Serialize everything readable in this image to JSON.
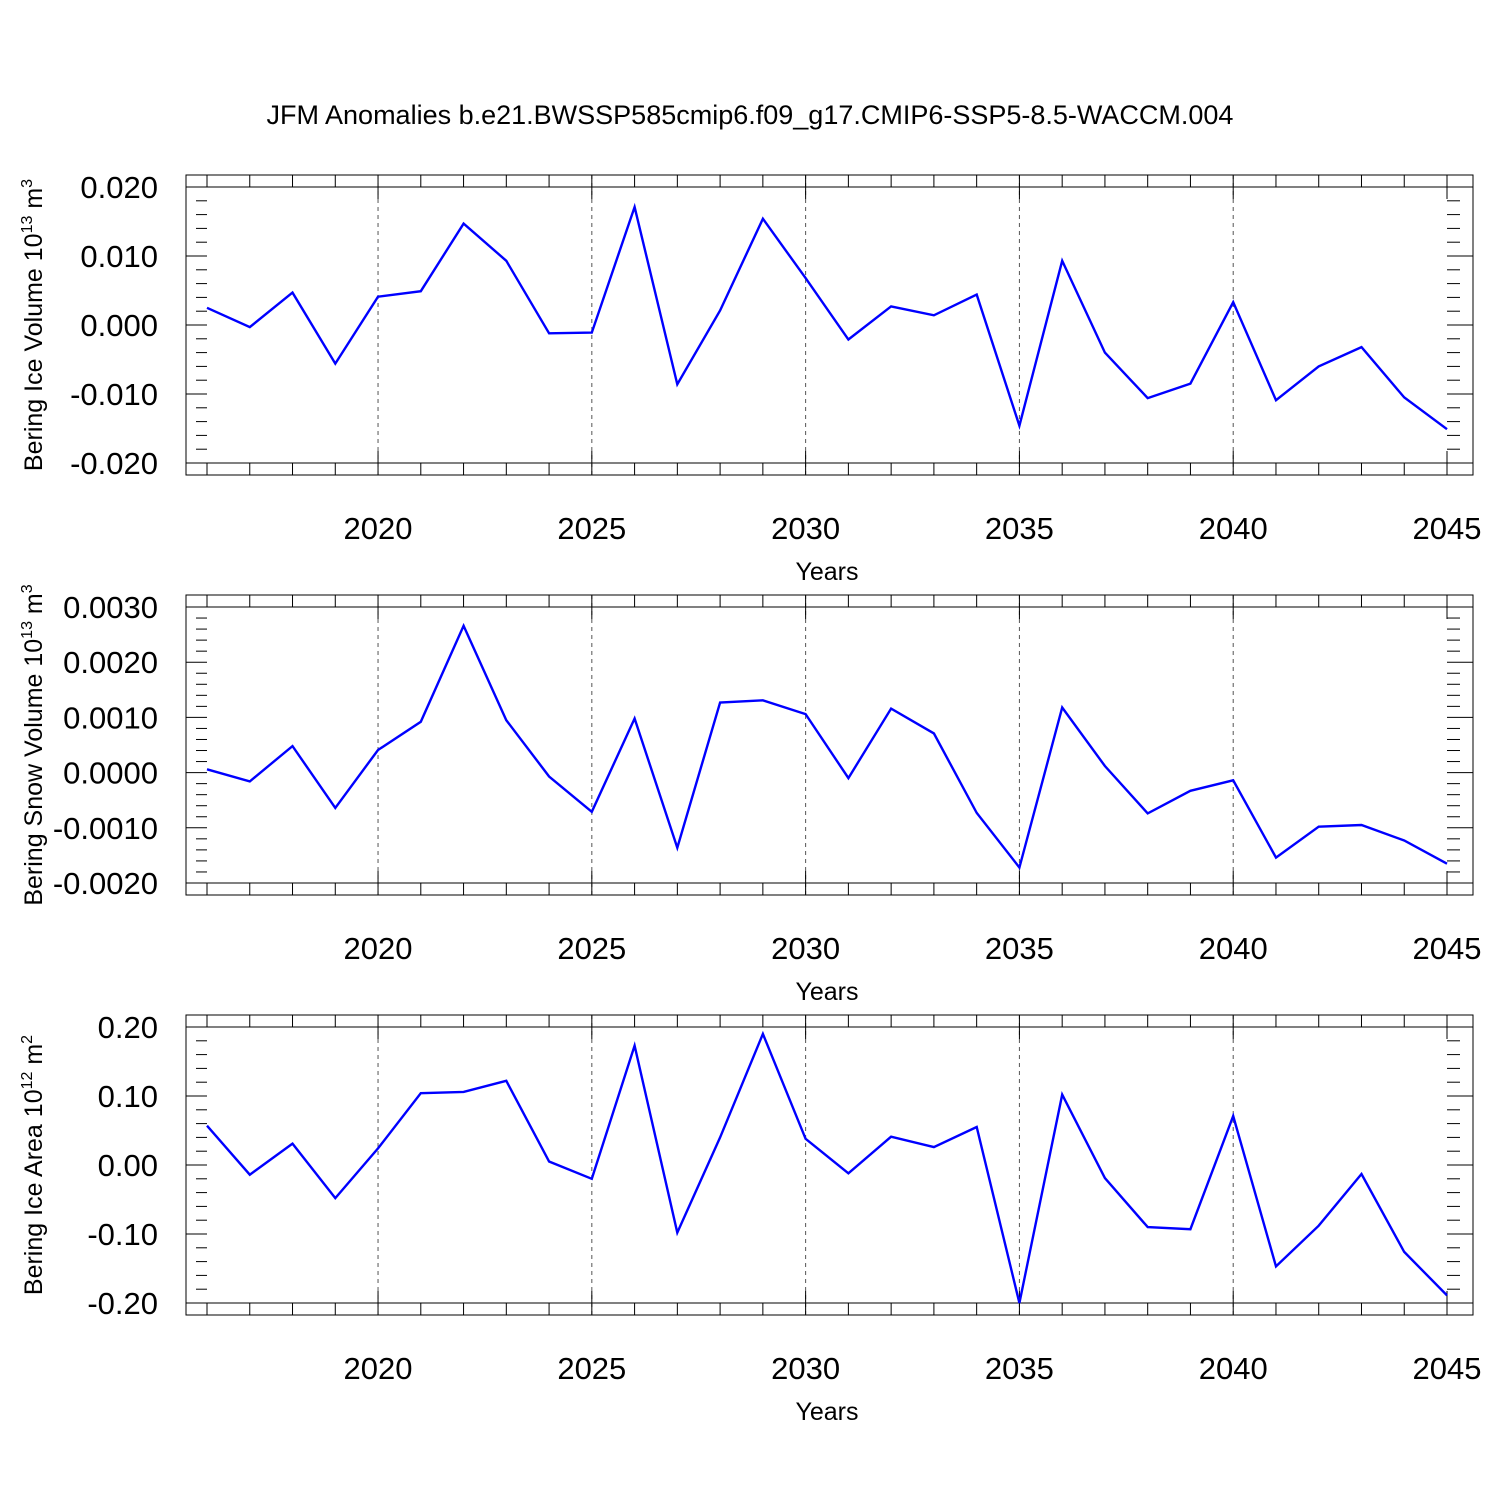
{
  "title": "JFM Anomalies b.e21.BWSSP585cmip6.f09_g17.CMIP6-SSP5-8.5-WACCM.004",
  "colors": {
    "series": "#0000ff",
    "axis": "#000000",
    "grid": "#555555"
  },
  "chart_data": [
    {
      "type": "line",
      "ylabel": "Bering Ice Volume 10",
      "ylabel_exp": "13",
      "ylabel_unit": " m",
      "ylabel_unit_exp": "3",
      "xlabel": "Years",
      "xlim": [
        2016,
        2045
      ],
      "ylim": [
        -0.02,
        0.02
      ],
      "xticks": [
        "2020",
        "2025",
        "2030",
        "2035",
        "2040",
        "2045"
      ],
      "yticks": [
        "0.020",
        "0.010",
        "0.000",
        "-0.010",
        "-0.020"
      ],
      "grid": "vertical dashed at major x ticks",
      "x": [
        2016,
        2017,
        2018,
        2019,
        2020,
        2021,
        2022,
        2023,
        2024,
        2025,
        2026,
        2027,
        2028,
        2029,
        2030,
        2031,
        2032,
        2033,
        2034,
        2035,
        2036,
        2037,
        2038,
        2039,
        2040,
        2041,
        2042,
        2043,
        2044,
        2045
      ],
      "series": [
        {
          "values": [
            0.0025,
            -0.0003,
            0.0047,
            -0.0056,
            0.0041,
            0.0049,
            0.0147,
            0.0093,
            -0.0012,
            -0.0011,
            0.0171,
            -0.0086,
            0.0021,
            0.0154,
            0.0068,
            -0.0021,
            0.0027,
            0.0014,
            0.0044,
            -0.0146,
            0.0093,
            -0.004,
            -0.0106,
            -0.0085,
            0.0033,
            -0.0109,
            -0.006,
            -0.0032,
            -0.0105,
            -0.0151
          ]
        }
      ]
    },
    {
      "type": "line",
      "ylabel": "Bering Snow Volume 10",
      "ylabel_exp": "13",
      "ylabel_unit": " m",
      "ylabel_unit_exp": "3",
      "xlabel": "Years",
      "xlim": [
        2016,
        2045
      ],
      "ylim": [
        -0.002,
        0.003
      ],
      "xticks": [
        "2020",
        "2025",
        "2030",
        "2035",
        "2040",
        "2045"
      ],
      "yticks": [
        "0.0030",
        "0.0020",
        "0.0010",
        "0.0000",
        "-0.0010",
        "-0.0020"
      ],
      "grid": "vertical dashed at major x ticks",
      "x": [
        2016,
        2017,
        2018,
        2019,
        2020,
        2021,
        2022,
        2023,
        2024,
        2025,
        2026,
        2027,
        2028,
        2029,
        2030,
        2031,
        2032,
        2033,
        2034,
        2035,
        2036,
        2037,
        2038,
        2039,
        2040,
        2041,
        2042,
        2043,
        2044,
        2045
      ],
      "series": [
        {
          "values": [
            6e-05,
            -0.00016,
            0.00048,
            -0.00064,
            0.00041,
            0.00092,
            0.00266,
            0.00095,
            -7e-05,
            -0.00071,
            0.00098,
            -0.00136,
            0.00127,
            0.00131,
            0.00106,
            -0.0001,
            0.00116,
            0.00071,
            -0.00073,
            -0.00172,
            0.00118,
            0.00012,
            -0.00074,
            -0.00033,
            -0.00014,
            -0.00154,
            -0.00098,
            -0.00095,
            -0.00123,
            -0.00165
          ]
        }
      ]
    },
    {
      "type": "line",
      "ylabel": "Bering Ice Area 10",
      "ylabel_exp": "12",
      "ylabel_unit": " m",
      "ylabel_unit_exp": "2",
      "xlabel": "Years",
      "xlim": [
        2016,
        2045
      ],
      "ylim": [
        -0.2,
        0.2
      ],
      "xticks": [
        "2020",
        "2025",
        "2030",
        "2035",
        "2040",
        "2045"
      ],
      "yticks": [
        "0.20",
        "0.10",
        "0.00",
        "-0.10",
        "-0.20"
      ],
      "grid": "vertical dashed at major x ticks",
      "x": [
        2016,
        2017,
        2018,
        2019,
        2020,
        2021,
        2022,
        2023,
        2024,
        2025,
        2026,
        2027,
        2028,
        2029,
        2030,
        2031,
        2032,
        2033,
        2034,
        2035,
        2036,
        2037,
        2038,
        2039,
        2040,
        2041,
        2042,
        2043,
        2044,
        2045
      ],
      "series": [
        {
          "values": [
            0.057,
            -0.014,
            0.031,
            -0.048,
            0.024,
            0.104,
            0.106,
            0.122,
            0.005,
            -0.02,
            0.173,
            -0.098,
            0.04,
            0.19,
            0.038,
            -0.012,
            0.041,
            0.026,
            0.055,
            -0.2,
            0.102,
            -0.019,
            -0.09,
            -0.093,
            0.071,
            -0.147,
            -0.088,
            -0.013,
            -0.126,
            -0.189
          ]
        }
      ]
    }
  ]
}
